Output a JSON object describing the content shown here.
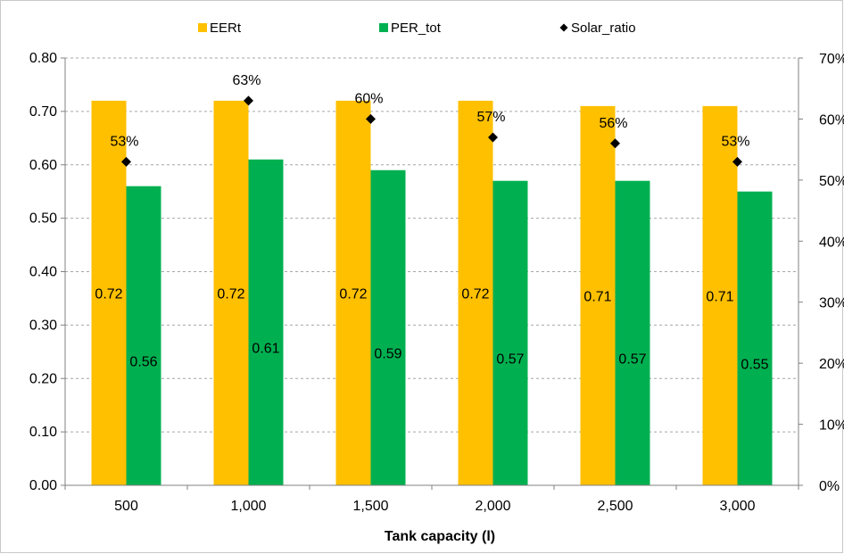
{
  "chart_data": {
    "type": "bar",
    "title": "",
    "xlabel": "Tank capacity (l)",
    "ylabel": "",
    "ylabel_right": "",
    "categories": [
      "500",
      "1,000",
      "1,500",
      "2,000",
      "2,500",
      "3,000"
    ],
    "series": [
      {
        "name": "EERt",
        "type": "bar",
        "axis": "left",
        "color": "#FFC000",
        "values": [
          0.72,
          0.72,
          0.72,
          0.72,
          0.71,
          0.71
        ],
        "labels": [
          "0.72",
          "0.72",
          "0.72",
          "0.72",
          "0.71",
          "0.71"
        ]
      },
      {
        "name": "PER_tot",
        "type": "bar",
        "axis": "left",
        "color": "#00B050",
        "values": [
          0.56,
          0.61,
          0.59,
          0.57,
          0.57,
          0.55
        ],
        "labels": [
          "0.56",
          "0.61",
          "0.59",
          "0.57",
          "0.57",
          "0.55"
        ]
      },
      {
        "name": "Solar_ratio",
        "type": "scatter",
        "marker": "diamond",
        "axis": "right",
        "color": "#000000",
        "values": [
          0.53,
          0.63,
          0.6,
          0.57,
          0.56,
          0.53
        ],
        "labels": [
          "53%",
          "63%",
          "60%",
          "57%",
          "56%",
          "53%"
        ]
      }
    ],
    "ylim": [
      0,
      0.8
    ],
    "yticks": [
      "0.00",
      "0.10",
      "0.20",
      "0.30",
      "0.40",
      "0.50",
      "0.60",
      "0.70",
      "0.80"
    ],
    "ylim_right": [
      0,
      0.7
    ],
    "yticks_right": [
      "0%",
      "10%",
      "20%",
      "30%",
      "40%",
      "50%",
      "60%",
      "70%"
    ],
    "grid": "horizontal dashed",
    "legend_position": "top"
  }
}
